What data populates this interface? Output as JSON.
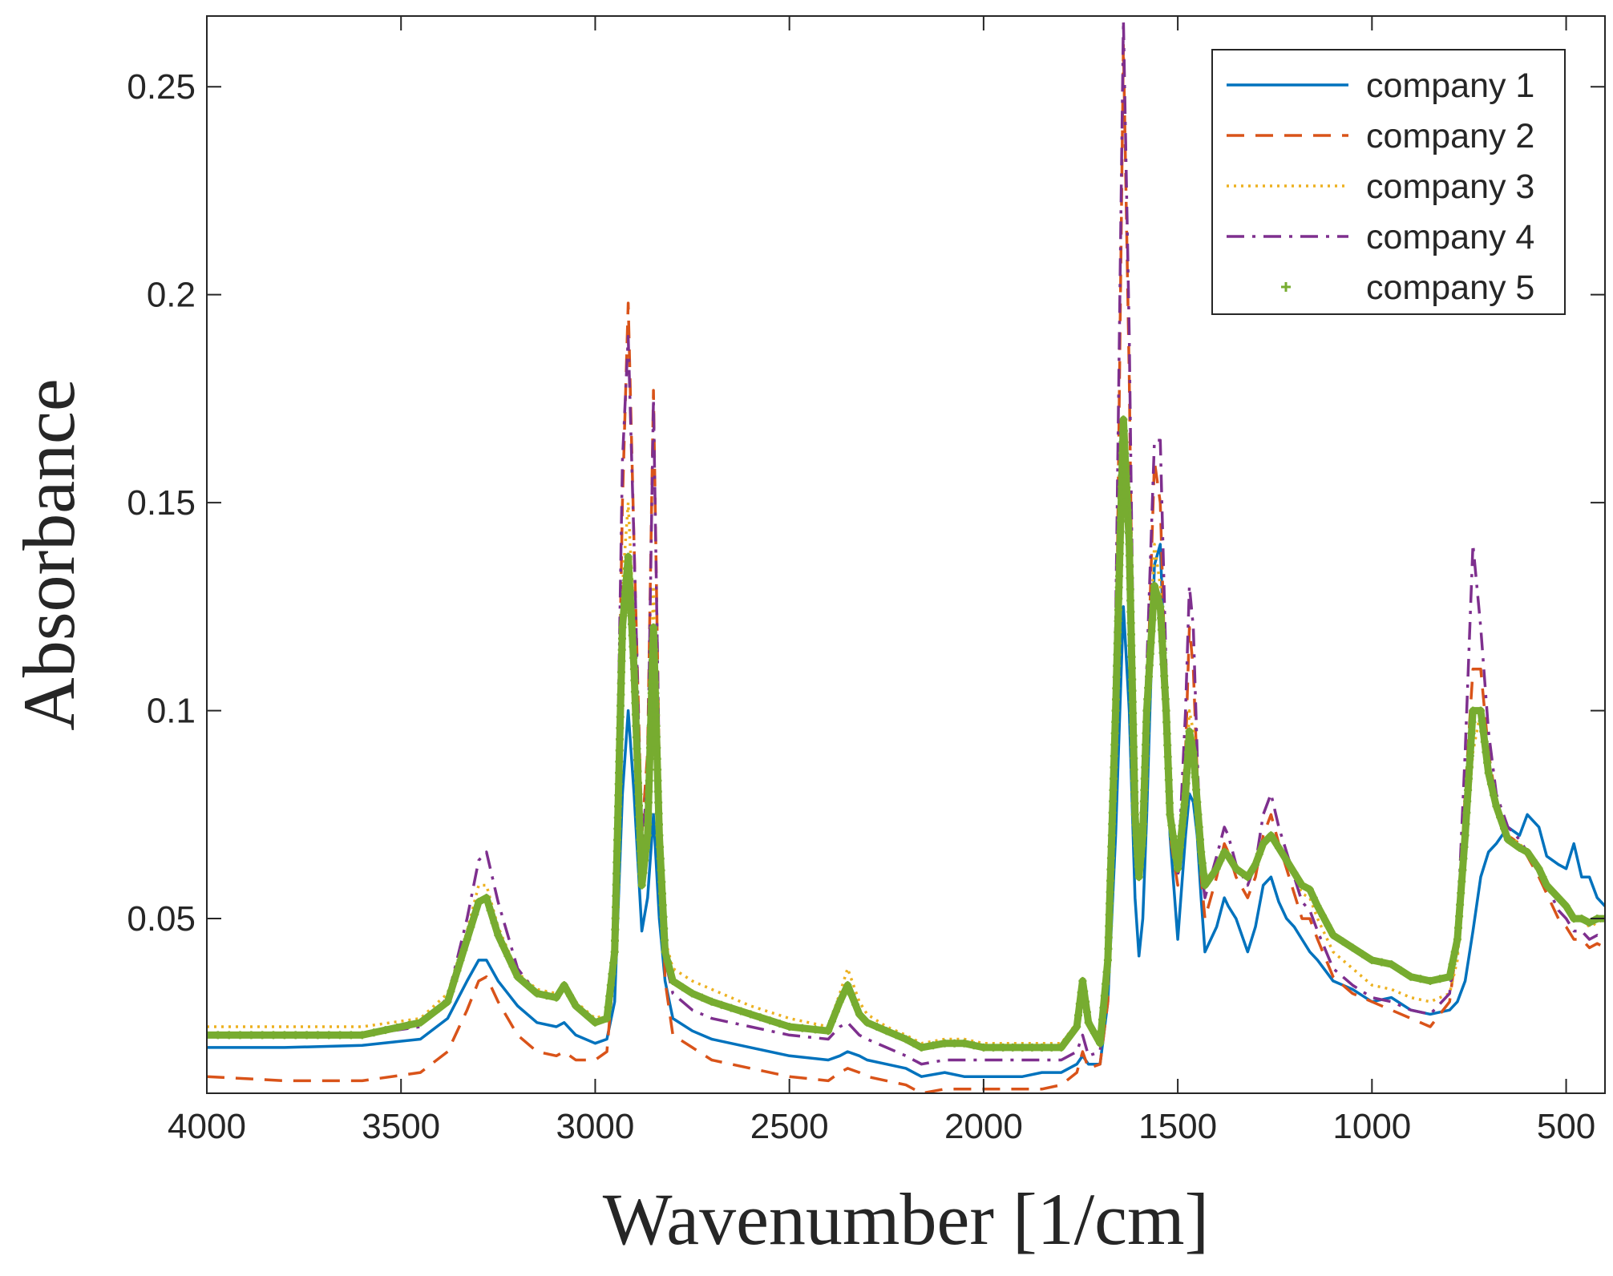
{
  "chart_data": {
    "type": "line",
    "title": "",
    "xlabel": "Wavenumber [1/cm]",
    "ylabel": "Absorbance",
    "xlim": [
      4000,
      400
    ],
    "ylim": [
      0.008,
      0.267
    ],
    "x_reversed": true,
    "grid": false,
    "legend_position": "top-right",
    "xticks": [
      4000,
      3500,
      3000,
      2500,
      2000,
      1500,
      1000,
      500
    ],
    "xtick_labels": [
      "4000",
      "3500",
      "3000",
      "2500",
      "2000",
      "1500",
      "1000",
      "500"
    ],
    "yticks": [
      0.05,
      0.1,
      0.15,
      0.2,
      0.25
    ],
    "ytick_labels": [
      "0.05",
      "0.1",
      "0.15",
      "0.2",
      "0.25"
    ],
    "series": [
      {
        "name": "company 1",
        "color": "#0072BD",
        "style": "solid",
        "x": [
          4000,
          3800,
          3600,
          3450,
          3380,
          3330,
          3300,
          3280,
          3250,
          3200,
          3150,
          3100,
          3080,
          3050,
          3000,
          2970,
          2950,
          2930,
          2915,
          2900,
          2880,
          2865,
          2850,
          2835,
          2820,
          2800,
          2750,
          2700,
          2600,
          2500,
          2400,
          2370,
          2350,
          2320,
          2300,
          2250,
          2200,
          2160,
          2100,
          2050,
          2000,
          1950,
          1900,
          1850,
          1800,
          1760,
          1745,
          1730,
          1700,
          1680,
          1660,
          1640,
          1625,
          1610,
          1600,
          1590,
          1580,
          1560,
          1545,
          1530,
          1520,
          1500,
          1480,
          1470,
          1460,
          1450,
          1440,
          1430,
          1400,
          1380,
          1370,
          1350,
          1320,
          1300,
          1280,
          1260,
          1240,
          1220,
          1200,
          1180,
          1160,
          1140,
          1100,
          1050,
          1000,
          950,
          900,
          850,
          800,
          780,
          760,
          740,
          720,
          700,
          680,
          650,
          620,
          600,
          570,
          550,
          520,
          500,
          480,
          460,
          440,
          420,
          400
        ],
        "y": [
          0.019,
          0.019,
          0.0195,
          0.021,
          0.026,
          0.035,
          0.04,
          0.04,
          0.035,
          0.029,
          0.025,
          0.024,
          0.025,
          0.022,
          0.02,
          0.021,
          0.03,
          0.08,
          0.1,
          0.08,
          0.047,
          0.055,
          0.075,
          0.05,
          0.035,
          0.026,
          0.023,
          0.021,
          0.019,
          0.017,
          0.016,
          0.017,
          0.018,
          0.017,
          0.016,
          0.015,
          0.014,
          0.012,
          0.013,
          0.012,
          0.012,
          0.012,
          0.012,
          0.013,
          0.013,
          0.015,
          0.017,
          0.015,
          0.015,
          0.03,
          0.07,
          0.125,
          0.1,
          0.055,
          0.041,
          0.05,
          0.075,
          0.135,
          0.14,
          0.1,
          0.07,
          0.045,
          0.07,
          0.08,
          0.078,
          0.07,
          0.055,
          0.042,
          0.048,
          0.055,
          0.053,
          0.05,
          0.042,
          0.048,
          0.058,
          0.06,
          0.054,
          0.05,
          0.048,
          0.045,
          0.042,
          0.04,
          0.035,
          0.033,
          0.03,
          0.031,
          0.028,
          0.027,
          0.028,
          0.03,
          0.035,
          0.047,
          0.06,
          0.066,
          0.068,
          0.072,
          0.07,
          0.075,
          0.072,
          0.065,
          0.063,
          0.062,
          0.068,
          0.06,
          0.06,
          0.055,
          0.053
        ]
      },
      {
        "name": "company 2",
        "color": "#D95319",
        "style": "dashed",
        "x": [
          4000,
          3800,
          3600,
          3450,
          3380,
          3330,
          3300,
          3280,
          3250,
          3200,
          3150,
          3100,
          3080,
          3050,
          3000,
          2970,
          2950,
          2930,
          2915,
          2900,
          2880,
          2865,
          2850,
          2835,
          2820,
          2800,
          2750,
          2700,
          2600,
          2500,
          2400,
          2370,
          2350,
          2320,
          2300,
          2250,
          2200,
          2160,
          2100,
          2050,
          2000,
          1950,
          1900,
          1850,
          1800,
          1760,
          1745,
          1730,
          1700,
          1680,
          1660,
          1640,
          1625,
          1610,
          1600,
          1590,
          1580,
          1560,
          1545,
          1530,
          1520,
          1500,
          1480,
          1470,
          1460,
          1450,
          1440,
          1430,
          1400,
          1380,
          1370,
          1350,
          1320,
          1300,
          1280,
          1260,
          1240,
          1220,
          1200,
          1180,
          1160,
          1140,
          1100,
          1050,
          1000,
          950,
          900,
          850,
          800,
          780,
          760,
          740,
          720,
          700,
          680,
          650,
          620,
          600,
          570,
          550,
          520,
          500,
          480,
          460,
          440,
          420,
          400
        ],
        "y": [
          0.012,
          0.011,
          0.011,
          0.013,
          0.018,
          0.028,
          0.035,
          0.036,
          0.03,
          0.022,
          0.018,
          0.017,
          0.018,
          0.016,
          0.016,
          0.018,
          0.04,
          0.15,
          0.198,
          0.14,
          0.07,
          0.09,
          0.177,
          0.085,
          0.035,
          0.022,
          0.019,
          0.016,
          0.014,
          0.012,
          0.011,
          0.013,
          0.014,
          0.013,
          0.012,
          0.011,
          0.01,
          0.008,
          0.009,
          0.009,
          0.009,
          0.009,
          0.009,
          0.009,
          0.01,
          0.013,
          0.018,
          0.014,
          0.015,
          0.03,
          0.1,
          0.26,
          0.18,
          0.07,
          0.06,
          0.07,
          0.1,
          0.16,
          0.15,
          0.1,
          0.07,
          0.058,
          0.09,
          0.12,
          0.11,
          0.085,
          0.06,
          0.05,
          0.06,
          0.068,
          0.066,
          0.06,
          0.055,
          0.06,
          0.07,
          0.075,
          0.068,
          0.062,
          0.056,
          0.05,
          0.05,
          0.045,
          0.036,
          0.032,
          0.03,
          0.028,
          0.026,
          0.024,
          0.03,
          0.045,
          0.08,
          0.11,
          0.11,
          0.09,
          0.078,
          0.07,
          0.068,
          0.065,
          0.06,
          0.056,
          0.05,
          0.048,
          0.045,
          0.045,
          0.043,
          0.044,
          0.043
        ]
      },
      {
        "name": "company 3",
        "color": "#EDB120",
        "style": "dotted",
        "x": [
          4000,
          3800,
          3600,
          3450,
          3380,
          3330,
          3300,
          3280,
          3250,
          3200,
          3150,
          3100,
          3080,
          3050,
          3000,
          2970,
          2950,
          2930,
          2915,
          2900,
          2880,
          2865,
          2850,
          2835,
          2820,
          2800,
          2750,
          2700,
          2600,
          2500,
          2400,
          2370,
          2350,
          2320,
          2300,
          2250,
          2200,
          2160,
          2100,
          2050,
          2000,
          1950,
          1900,
          1850,
          1800,
          1760,
          1745,
          1730,
          1700,
          1680,
          1660,
          1640,
          1625,
          1610,
          1600,
          1590,
          1580,
          1560,
          1545,
          1530,
          1520,
          1500,
          1480,
          1470,
          1460,
          1450,
          1440,
          1430,
          1400,
          1380,
          1370,
          1350,
          1320,
          1300,
          1280,
          1260,
          1240,
          1220,
          1200,
          1180,
          1160,
          1140,
          1100,
          1050,
          1000,
          950,
          900,
          850,
          800,
          780,
          760,
          740,
          720,
          700,
          680,
          650,
          620,
          600,
          570,
          550,
          520,
          500,
          480,
          460,
          440,
          420,
          400
        ],
        "y": [
          0.024,
          0.024,
          0.024,
          0.026,
          0.032,
          0.047,
          0.058,
          0.058,
          0.048,
          0.037,
          0.033,
          0.032,
          0.034,
          0.03,
          0.026,
          0.027,
          0.045,
          0.13,
          0.15,
          0.12,
          0.06,
          0.075,
          0.13,
          0.075,
          0.045,
          0.038,
          0.035,
          0.033,
          0.029,
          0.026,
          0.024,
          0.032,
          0.038,
          0.03,
          0.027,
          0.024,
          0.022,
          0.02,
          0.021,
          0.021,
          0.02,
          0.02,
          0.02,
          0.02,
          0.02,
          0.025,
          0.034,
          0.025,
          0.02,
          0.04,
          0.1,
          0.17,
          0.14,
          0.075,
          0.06,
          0.07,
          0.1,
          0.14,
          0.13,
          0.1,
          0.075,
          0.062,
          0.08,
          0.1,
          0.095,
          0.08,
          0.066,
          0.058,
          0.062,
          0.067,
          0.066,
          0.062,
          0.06,
          0.063,
          0.068,
          0.07,
          0.067,
          0.064,
          0.06,
          0.056,
          0.055,
          0.05,
          0.042,
          0.038,
          0.034,
          0.033,
          0.031,
          0.03,
          0.032,
          0.04,
          0.065,
          0.09,
          0.1,
          0.085,
          0.077,
          0.07,
          0.068,
          0.066,
          0.062,
          0.058,
          0.055,
          0.052,
          0.05,
          0.05,
          0.048,
          0.049,
          0.05
        ]
      },
      {
        "name": "company 4",
        "color": "#7E2F8E",
        "style": "dashdot",
        "x": [
          4000,
          3800,
          3600,
          3450,
          3380,
          3330,
          3300,
          3280,
          3250,
          3200,
          3150,
          3100,
          3080,
          3050,
          3000,
          2970,
          2950,
          2930,
          2915,
          2900,
          2880,
          2865,
          2850,
          2835,
          2820,
          2800,
          2750,
          2700,
          2600,
          2500,
          2400,
          2370,
          2350,
          2320,
          2300,
          2250,
          2200,
          2160,
          2100,
          2050,
          2000,
          1950,
          1900,
          1850,
          1800,
          1760,
          1745,
          1730,
          1700,
          1680,
          1660,
          1640,
          1625,
          1610,
          1600,
          1590,
          1580,
          1560,
          1545,
          1530,
          1520,
          1500,
          1480,
          1470,
          1460,
          1450,
          1440,
          1430,
          1400,
          1380,
          1370,
          1350,
          1320,
          1300,
          1280,
          1260,
          1240,
          1220,
          1200,
          1180,
          1160,
          1140,
          1100,
          1050,
          1000,
          950,
          900,
          850,
          800,
          780,
          760,
          740,
          720,
          700,
          680,
          650,
          620,
          600,
          570,
          550,
          520,
          500,
          480,
          460,
          440,
          420,
          400
        ],
        "y": [
          0.022,
          0.022,
          0.022,
          0.024,
          0.031,
          0.05,
          0.064,
          0.066,
          0.054,
          0.038,
          0.032,
          0.031,
          0.033,
          0.029,
          0.025,
          0.026,
          0.045,
          0.16,
          0.19,
          0.14,
          0.065,
          0.085,
          0.175,
          0.085,
          0.04,
          0.032,
          0.028,
          0.026,
          0.024,
          0.022,
          0.021,
          0.024,
          0.025,
          0.022,
          0.021,
          0.019,
          0.017,
          0.015,
          0.016,
          0.016,
          0.016,
          0.016,
          0.016,
          0.016,
          0.016,
          0.018,
          0.022,
          0.017,
          0.018,
          0.04,
          0.12,
          0.266,
          0.19,
          0.08,
          0.065,
          0.075,
          0.11,
          0.165,
          0.165,
          0.11,
          0.075,
          0.06,
          0.1,
          0.13,
          0.12,
          0.09,
          0.062,
          0.055,
          0.065,
          0.072,
          0.07,
          0.063,
          0.058,
          0.063,
          0.075,
          0.08,
          0.072,
          0.066,
          0.06,
          0.054,
          0.052,
          0.047,
          0.038,
          0.034,
          0.031,
          0.03,
          0.028,
          0.027,
          0.032,
          0.048,
          0.09,
          0.14,
          0.12,
          0.095,
          0.08,
          0.072,
          0.069,
          0.066,
          0.062,
          0.058,
          0.052,
          0.05,
          0.047,
          0.047,
          0.045,
          0.046,
          0.045
        ]
      },
      {
        "name": "company 5",
        "color": "#77AC30",
        "style": "markers",
        "x": [
          4000,
          3800,
          3600,
          3450,
          3380,
          3330,
          3300,
          3280,
          3250,
          3200,
          3150,
          3100,
          3080,
          3050,
          3000,
          2970,
          2950,
          2930,
          2915,
          2900,
          2880,
          2865,
          2850,
          2835,
          2820,
          2800,
          2750,
          2700,
          2600,
          2500,
          2400,
          2370,
          2350,
          2320,
          2300,
          2250,
          2200,
          2160,
          2100,
          2050,
          2000,
          1950,
          1900,
          1850,
          1800,
          1760,
          1745,
          1730,
          1700,
          1680,
          1660,
          1640,
          1625,
          1610,
          1600,
          1590,
          1580,
          1560,
          1545,
          1530,
          1520,
          1500,
          1480,
          1470,
          1460,
          1450,
          1440,
          1430,
          1400,
          1380,
          1370,
          1350,
          1320,
          1300,
          1280,
          1260,
          1240,
          1220,
          1200,
          1180,
          1160,
          1140,
          1100,
          1050,
          1000,
          950,
          900,
          850,
          800,
          780,
          760,
          740,
          720,
          700,
          680,
          650,
          620,
          600,
          570,
          550,
          520,
          500,
          480,
          460,
          440,
          420,
          400
        ],
        "y": [
          0.022,
          0.022,
          0.022,
          0.025,
          0.03,
          0.045,
          0.054,
          0.055,
          0.046,
          0.036,
          0.032,
          0.031,
          0.034,
          0.029,
          0.025,
          0.026,
          0.042,
          0.12,
          0.137,
          0.11,
          0.058,
          0.07,
          0.12,
          0.07,
          0.042,
          0.035,
          0.032,
          0.03,
          0.027,
          0.024,
          0.023,
          0.03,
          0.034,
          0.027,
          0.025,
          0.023,
          0.021,
          0.019,
          0.02,
          0.02,
          0.019,
          0.019,
          0.019,
          0.019,
          0.019,
          0.024,
          0.035,
          0.025,
          0.02,
          0.04,
          0.1,
          0.17,
          0.14,
          0.075,
          0.06,
          0.07,
          0.1,
          0.13,
          0.125,
          0.1,
          0.075,
          0.062,
          0.08,
          0.095,
          0.09,
          0.078,
          0.066,
          0.058,
          0.062,
          0.066,
          0.065,
          0.062,
          0.06,
          0.063,
          0.068,
          0.07,
          0.067,
          0.064,
          0.061,
          0.058,
          0.057,
          0.053,
          0.046,
          0.043,
          0.04,
          0.039,
          0.036,
          0.035,
          0.036,
          0.045,
          0.07,
          0.1,
          0.1,
          0.085,
          0.077,
          0.069,
          0.067,
          0.066,
          0.062,
          0.058,
          0.055,
          0.053,
          0.05,
          0.05,
          0.049,
          0.05,
          0.05
        ]
      }
    ]
  }
}
